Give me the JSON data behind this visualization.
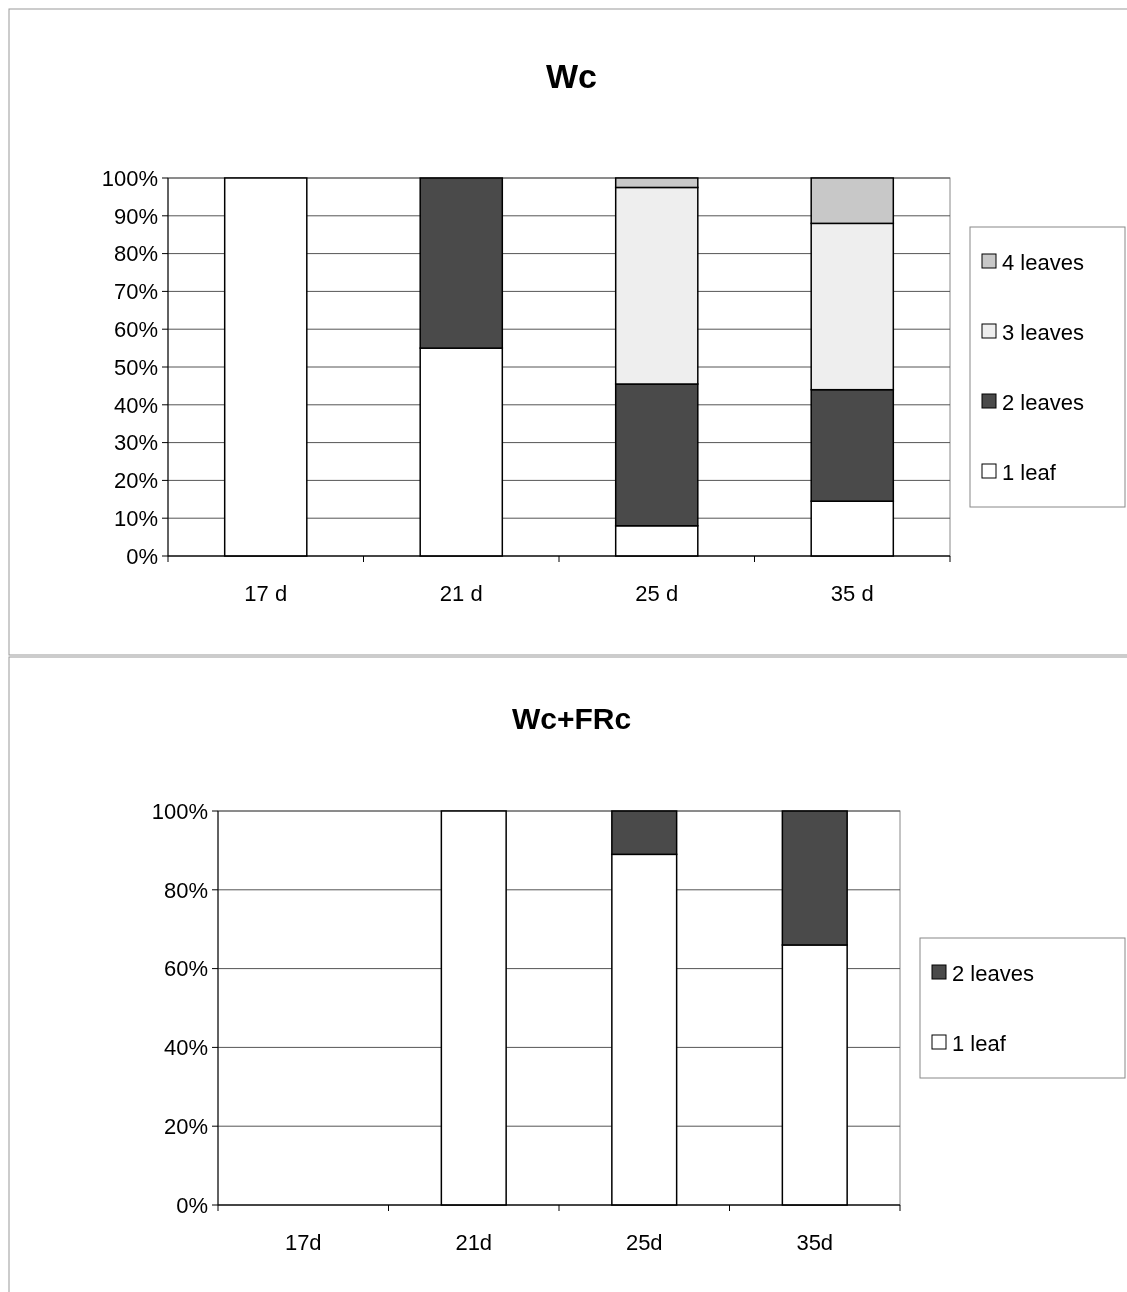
{
  "chart_data": [
    {
      "type": "bar",
      "title": "Wc",
      "stacked": true,
      "categories": [
        "17 d",
        "21 d",
        "25 d",
        "35 d"
      ],
      "ylim": [
        0,
        100
      ],
      "yticks": [
        {
          "value": 0,
          "label": "0%"
        },
        {
          "value": 10,
          "label": "10%"
        },
        {
          "value": 20,
          "label": "20%"
        },
        {
          "value": 30,
          "label": "30%"
        },
        {
          "value": 40,
          "label": "40%"
        },
        {
          "value": 50,
          "label": "50%"
        },
        {
          "value": 60,
          "label": "60%"
        },
        {
          "value": 70,
          "label": "70%"
        },
        {
          "value": 80,
          "label": "80%"
        },
        {
          "value": 90,
          "label": "90%"
        },
        {
          "value": 100,
          "label": "100%"
        }
      ],
      "grid": "y",
      "legend": "right",
      "series": [
        {
          "name": "1 leaf",
          "color": "#ffffff",
          "values": [
            100,
            55,
            8,
            14.5
          ]
        },
        {
          "name": "2 leaves",
          "color": "#4a4a4a",
          "values": [
            null,
            45,
            37.5,
            29.5
          ]
        },
        {
          "name": "3 leaves",
          "color": "#eeeeee",
          "values": [
            null,
            null,
            52,
            44
          ]
        },
        {
          "name": "4 leaves",
          "color": "#c8c8c8",
          "values": [
            null,
            null,
            2.5,
            12
          ]
        }
      ]
    },
    {
      "type": "bar",
      "title": "Wc+FRc",
      "stacked": true,
      "categories": [
        "17d",
        "21d",
        "25d",
        "35d"
      ],
      "ylim": [
        0,
        100
      ],
      "yticks": [
        {
          "value": 0,
          "label": "0%"
        },
        {
          "value": 20,
          "label": "20%"
        },
        {
          "value": 40,
          "label": "40%"
        },
        {
          "value": 60,
          "label": "60%"
        },
        {
          "value": 80,
          "label": "80%"
        },
        {
          "value": 100,
          "label": "100%"
        }
      ],
      "grid": "y",
      "legend": "right",
      "series": [
        {
          "name": "1 leaf",
          "color": "#ffffff",
          "values": [
            null,
            100,
            89,
            66
          ]
        },
        {
          "name": "2 leaves",
          "color": "#4a4a4a",
          "values": [
            null,
            null,
            11,
            34
          ]
        }
      ]
    }
  ]
}
